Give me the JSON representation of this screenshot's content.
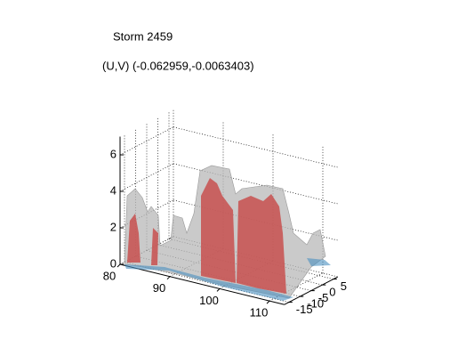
{
  "chart_data": {
    "type": "isosurface",
    "title": "Storm 2459",
    "subtitle": "(U,V) (-0.062959,-0.0063403)",
    "xlim": [
      80,
      113
    ],
    "xticks": [
      80,
      90,
      100,
      110
    ],
    "ylim": [
      -17,
      7
    ],
    "yticks": [
      -15,
      -10,
      -5,
      0,
      5
    ],
    "zlim": [
      0,
      7
    ],
    "zticks": [
      0,
      2,
      4,
      6
    ],
    "grid": true
  }
}
